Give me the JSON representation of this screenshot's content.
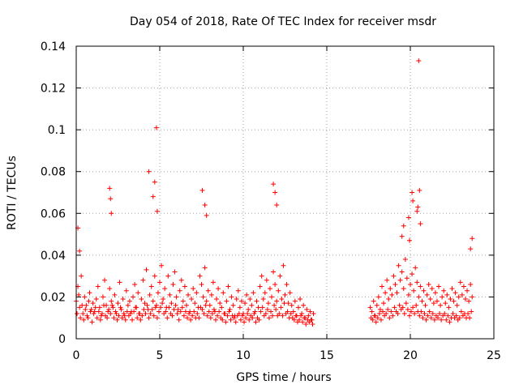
{
  "chart_data": {
    "type": "scatter",
    "title": "Day 054 of 2018, Rate Of TEC Index for receiver msdr",
    "xlabel": "GPS time / hours",
    "ylabel": "ROTI / TECUs",
    "xlim": [
      0,
      25
    ],
    "ylim": [
      0,
      0.14
    ],
    "xticks": [
      0,
      5,
      10,
      15,
      20,
      25
    ],
    "xtick_labels": [
      "0",
      "5",
      "10",
      "15",
      "20",
      "25"
    ],
    "yticks": [
      0,
      0.02,
      0.04,
      0.06,
      0.08,
      0.1,
      0.12,
      0.14
    ],
    "ytick_labels": [
      "0",
      "0.02",
      "0.04",
      "0.06",
      "0.08",
      "0.1",
      "0.12",
      "0.14"
    ],
    "grid": true,
    "marker": "+",
    "color": "#ff0000",
    "series": [
      {
        "name": "ROTI",
        "x": [
          0.0,
          0.1,
          0.2,
          0.3,
          0.4,
          0.5,
          0.6,
          0.7,
          0.8,
          0.9,
          1.0,
          1.1,
          1.2,
          1.3,
          1.4,
          1.5,
          1.6,
          1.7,
          1.8,
          1.9,
          2.0,
          2.1,
          2.2,
          2.3,
          2.4,
          2.5,
          2.6,
          2.7,
          2.8,
          2.9,
          3.0,
          3.1,
          3.2,
          3.3,
          3.4,
          3.5,
          3.6,
          3.7,
          3.8,
          3.9,
          4.0,
          4.1,
          4.2,
          4.3,
          4.4,
          4.5,
          4.6,
          4.7,
          4.8,
          4.9,
          5.0,
          5.1,
          5.2,
          5.3,
          5.4,
          5.5,
          5.6,
          5.7,
          5.8,
          5.9,
          6.0,
          6.1,
          6.2,
          6.3,
          6.4,
          6.5,
          6.6,
          6.7,
          6.8,
          6.9,
          7.0,
          7.1,
          7.2,
          7.3,
          7.4,
          7.5,
          7.6,
          7.7,
          7.8,
          7.9,
          8.0,
          8.1,
          8.2,
          8.3,
          8.4,
          8.5,
          8.6,
          8.7,
          8.8,
          8.9,
          9.0,
          9.1,
          9.2,
          9.3,
          9.4,
          9.5,
          9.6,
          9.7,
          9.8,
          9.9,
          10.0,
          10.1,
          10.2,
          10.3,
          10.4,
          10.5,
          10.6,
          10.7,
          10.8,
          10.9,
          11.0,
          11.1,
          11.2,
          11.3,
          11.4,
          11.5,
          11.6,
          11.7,
          11.8,
          11.9,
          12.0,
          12.1,
          12.2,
          12.3,
          12.4,
          12.5,
          12.6,
          12.7,
          12.8,
          12.9,
          13.0,
          13.1,
          13.2,
          13.3,
          13.4,
          13.5,
          13.6,
          13.7,
          13.8,
          13.9,
          14.0,
          14.1,
          14.2,
          0.05,
          0.15,
          0.25,
          0.35,
          0.45,
          0.55,
          0.65,
          0.75,
          0.85,
          0.95,
          1.05,
          1.15,
          1.25,
          1.35,
          1.45,
          1.55,
          1.65,
          1.75,
          1.85,
          1.95,
          2.05,
          2.15,
          2.25,
          2.35,
          2.45,
          2.55,
          2.65,
          2.75,
          2.85,
          2.95,
          3.05,
          3.15,
          3.25,
          3.35,
          3.45,
          3.55,
          3.65,
          3.75,
          3.85,
          3.95,
          4.05,
          4.15,
          4.25,
          4.35,
          4.45,
          4.55,
          4.65,
          4.75,
          4.85,
          4.95,
          5.05,
          5.15,
          5.25,
          5.35,
          5.45,
          5.55,
          5.65,
          5.75,
          5.85,
          5.95,
          6.05,
          6.15,
          6.25,
          6.35,
          6.45,
          6.55,
          6.65,
          6.75,
          6.85,
          6.95,
          7.05,
          7.15,
          7.25,
          7.35,
          7.45,
          7.55,
          7.65,
          7.75,
          7.85,
          7.95,
          8.05,
          8.15,
          8.25,
          8.35,
          8.45,
          8.55,
          8.65,
          8.75,
          8.85,
          8.95,
          9.05,
          9.15,
          9.25,
          9.35,
          9.45,
          9.55,
          9.65,
          9.75,
          9.85,
          9.95,
          10.05,
          10.15,
          10.25,
          10.35,
          10.45,
          10.55,
          10.65,
          10.75,
          10.85,
          10.95,
          11.05,
          11.15,
          11.25,
          11.35,
          11.45,
          11.55,
          11.65,
          11.75,
          11.85,
          11.95,
          12.05,
          12.15,
          12.25,
          12.35,
          12.45,
          12.55,
          12.65,
          12.75,
          12.85,
          12.95,
          13.05,
          13.15,
          13.25,
          13.35,
          13.45,
          13.55,
          13.65,
          13.75,
          13.85,
          13.95,
          14.05,
          14.15,
          17.6,
          17.7,
          17.8,
          17.9,
          18.0,
          18.1,
          18.2,
          18.3,
          18.4,
          18.5,
          18.6,
          18.7,
          18.8,
          18.9,
          19.0,
          19.1,
          19.2,
          19.3,
          19.4,
          19.5,
          19.6,
          19.7,
          19.8,
          19.9,
          20.0,
          20.1,
          20.2,
          20.3,
          20.4,
          20.5,
          20.6,
          20.7,
          20.8,
          20.9,
          21.0,
          21.1,
          21.2,
          21.3,
          21.4,
          21.5,
          21.6,
          21.7,
          21.8,
          21.9,
          22.0,
          22.1,
          22.2,
          22.3,
          22.4,
          22.5,
          22.6,
          22.7,
          22.8,
          22.9,
          23.0,
          23.1,
          23.2,
          23.3,
          23.4,
          23.5,
          23.6,
          23.7,
          17.65,
          17.75,
          17.85,
          17.95,
          18.05,
          18.15,
          18.25,
          18.35,
          18.45,
          18.55,
          18.65,
          18.75,
          18.85,
          18.95,
          19.05,
          19.15,
          19.25,
          19.35,
          19.45,
          19.55,
          19.65,
          19.75,
          19.85,
          19.95,
          20.05,
          20.15,
          20.25,
          20.35,
          20.45,
          20.55,
          20.65,
          20.75,
          20.85,
          20.95,
          21.05,
          21.15,
          21.25,
          21.35,
          21.45,
          21.55,
          21.65,
          21.75,
          21.85,
          21.95,
          22.05,
          22.15,
          22.25,
          22.35,
          22.45,
          22.55,
          22.65,
          22.75,
          22.85,
          22.95,
          23.05,
          23.15,
          23.25,
          23.35,
          23.45,
          23.55,
          23.65,
          0.1,
          0.2,
          2.0,
          2.05,
          2.1,
          4.35,
          4.6,
          4.7,
          4.8,
          4.85,
          7.55,
          7.7,
          7.8,
          11.8,
          11.9,
          12.0,
          19.5,
          19.6,
          19.9,
          19.95,
          20.1,
          20.15,
          20.4,
          20.45,
          20.5,
          20.55,
          20.6,
          23.6,
          23.7
        ],
        "y": [
          0.018,
          0.025,
          0.015,
          0.03,
          0.012,
          0.02,
          0.016,
          0.01,
          0.022,
          0.014,
          0.017,
          0.013,
          0.019,
          0.025,
          0.015,
          0.011,
          0.02,
          0.028,
          0.016,
          0.013,
          0.024,
          0.018,
          0.015,
          0.021,
          0.012,
          0.017,
          0.027,
          0.014,
          0.019,
          0.011,
          0.023,
          0.016,
          0.018,
          0.013,
          0.02,
          0.026,
          0.015,
          0.022,
          0.012,
          0.019,
          0.028,
          0.017,
          0.033,
          0.014,
          0.021,
          0.025,
          0.018,
          0.03,
          0.016,
          0.022,
          0.027,
          0.035,
          0.019,
          0.024,
          0.015,
          0.03,
          0.021,
          0.017,
          0.026,
          0.032,
          0.02,
          0.014,
          0.023,
          0.028,
          0.018,
          0.025,
          0.016,
          0.021,
          0.013,
          0.019,
          0.024,
          0.017,
          0.022,
          0.015,
          0.03,
          0.026,
          0.02,
          0.034,
          0.018,
          0.023,
          0.016,
          0.021,
          0.027,
          0.013,
          0.019,
          0.024,
          0.017,
          0.015,
          0.022,
          0.012,
          0.018,
          0.025,
          0.014,
          0.02,
          0.016,
          0.011,
          0.019,
          0.023,
          0.015,
          0.018,
          0.012,
          0.017,
          0.021,
          0.014,
          0.019,
          0.016,
          0.022,
          0.013,
          0.018,
          0.015,
          0.025,
          0.03,
          0.019,
          0.022,
          0.028,
          0.017,
          0.024,
          0.02,
          0.032,
          0.026,
          0.018,
          0.023,
          0.03,
          0.019,
          0.035,
          0.021,
          0.026,
          0.017,
          0.022,
          0.016,
          0.013,
          0.018,
          0.011,
          0.015,
          0.019,
          0.012,
          0.016,
          0.01,
          0.014,
          0.011,
          0.013,
          0.009,
          0.012,
          0.012,
          0.021,
          0.01,
          0.016,
          0.009,
          0.014,
          0.011,
          0.018,
          0.013,
          0.008,
          0.012,
          0.015,
          0.01,
          0.013,
          0.009,
          0.012,
          0.016,
          0.011,
          0.01,
          0.014,
          0.012,
          0.016,
          0.01,
          0.013,
          0.009,
          0.011,
          0.015,
          0.01,
          0.012,
          0.009,
          0.013,
          0.011,
          0.012,
          0.009,
          0.013,
          0.015,
          0.01,
          0.012,
          0.009,
          0.011,
          0.014,
          0.012,
          0.016,
          0.01,
          0.012,
          0.014,
          0.011,
          0.015,
          0.01,
          0.013,
          0.015,
          0.017,
          0.012,
          0.013,
          0.01,
          0.015,
          0.012,
          0.011,
          0.014,
          0.016,
          0.012,
          0.009,
          0.013,
          0.015,
          0.011,
          0.013,
          0.01,
          0.012,
          0.009,
          0.011,
          0.013,
          0.01,
          0.012,
          0.01,
          0.015,
          0.014,
          0.012,
          0.016,
          0.011,
          0.013,
          0.01,
          0.012,
          0.014,
          0.009,
          0.011,
          0.013,
          0.01,
          0.009,
          0.012,
          0.008,
          0.011,
          0.013,
          0.009,
          0.011,
          0.01,
          0.008,
          0.011,
          0.012,
          0.009,
          0.011,
          0.008,
          0.01,
          0.012,
          0.009,
          0.011,
          0.01,
          0.012,
          0.008,
          0.01,
          0.009,
          0.013,
          0.015,
          0.011,
          0.012,
          0.014,
          0.01,
          0.013,
          0.011,
          0.016,
          0.014,
          0.011,
          0.012,
          0.015,
          0.011,
          0.017,
          0.012,
          0.013,
          0.01,
          0.012,
          0.01,
          0.009,
          0.011,
          0.008,
          0.009,
          0.011,
          0.008,
          0.01,
          0.007,
          0.009,
          0.008,
          0.009,
          0.007,
          0.015,
          0.013,
          0.018,
          0.011,
          0.016,
          0.02,
          0.014,
          0.025,
          0.017,
          0.022,
          0.028,
          0.019,
          0.024,
          0.021,
          0.03,
          0.026,
          0.022,
          0.035,
          0.028,
          0.032,
          0.024,
          0.038,
          0.029,
          0.021,
          0.026,
          0.031,
          0.023,
          0.034,
          0.027,
          0.02,
          0.025,
          0.018,
          0.023,
          0.016,
          0.021,
          0.026,
          0.019,
          0.024,
          0.017,
          0.022,
          0.018,
          0.025,
          0.016,
          0.02,
          0.023,
          0.017,
          0.021,
          0.015,
          0.019,
          0.024,
          0.018,
          0.022,
          0.016,
          0.02,
          0.027,
          0.021,
          0.025,
          0.019,
          0.023,
          0.018,
          0.026,
          0.02,
          0.01,
          0.009,
          0.011,
          0.008,
          0.01,
          0.012,
          0.009,
          0.013,
          0.011,
          0.012,
          0.014,
          0.01,
          0.013,
          0.011,
          0.015,
          0.013,
          0.012,
          0.016,
          0.014,
          0.015,
          0.012,
          0.017,
          0.014,
          0.011,
          0.013,
          0.015,
          0.012,
          0.016,
          0.013,
          0.011,
          0.013,
          0.01,
          0.012,
          0.009,
          0.011,
          0.013,
          0.01,
          0.012,
          0.009,
          0.011,
          0.01,
          0.012,
          0.009,
          0.011,
          0.012,
          0.009,
          0.011,
          0.008,
          0.01,
          0.012,
          0.01,
          0.011,
          0.009,
          0.01,
          0.013,
          0.011,
          0.012,
          0.01,
          0.012,
          0.01,
          0.013,
          0.053,
          0.042,
          0.072,
          0.067,
          0.06,
          0.08,
          0.068,
          0.075,
          0.101,
          0.061,
          0.071,
          0.064,
          0.059,
          0.074,
          0.07,
          0.064,
          0.049,
          0.054,
          0.058,
          0.047,
          0.07,
          0.066,
          0.061,
          0.063,
          0.133,
          0.071,
          0.055,
          0.043,
          0.048
        ]
      }
    ]
  }
}
